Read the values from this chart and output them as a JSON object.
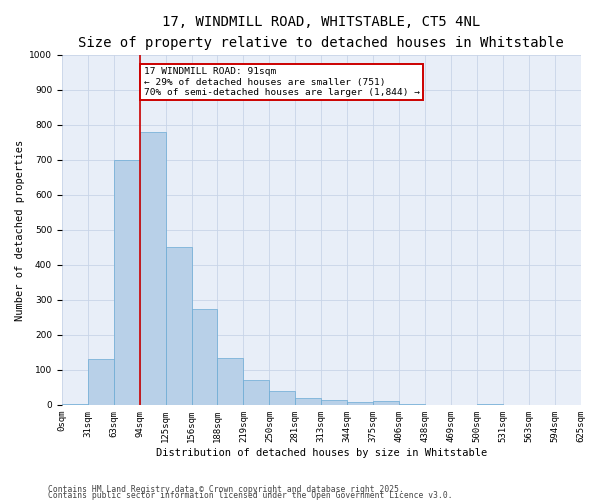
{
  "title1": "17, WINDMILL ROAD, WHITSTABLE, CT5 4NL",
  "title2": "Size of property relative to detached houses in Whitstable",
  "xlabel": "Distribution of detached houses by size in Whitstable",
  "ylabel": "Number of detached properties",
  "bin_labels": [
    "0sqm",
    "31sqm",
    "63sqm",
    "94sqm",
    "125sqm",
    "156sqm",
    "188sqm",
    "219sqm",
    "250sqm",
    "281sqm",
    "313sqm",
    "344sqm",
    "375sqm",
    "406sqm",
    "438sqm",
    "469sqm",
    "500sqm",
    "531sqm",
    "563sqm",
    "594sqm",
    "625sqm"
  ],
  "bar_values": [
    2,
    130,
    700,
    780,
    450,
    275,
    135,
    70,
    40,
    20,
    15,
    8,
    10,
    2,
    0,
    0,
    2,
    0,
    0,
    0
  ],
  "bar_color": "#b8d0e8",
  "bar_edge_color": "#6aaad4",
  "vline_color": "#cc0000",
  "vline_x": 3,
  "annotation_text": "17 WINDMILL ROAD: 91sqm\n← 29% of detached houses are smaller (751)\n70% of semi-detached houses are larger (1,844) →",
  "annotation_box_color": "#cc0000",
  "ylim": [
    0,
    1000
  ],
  "yticks": [
    0,
    100,
    200,
    300,
    400,
    500,
    600,
    700,
    800,
    900,
    1000
  ],
  "grid_color": "#c8d4e8",
  "bg_color": "#e8eef8",
  "footer1": "Contains HM Land Registry data © Crown copyright and database right 2025.",
  "footer2": "Contains public sector information licensed under the Open Government Licence v3.0.",
  "title_fontsize": 10,
  "subtitle_fontsize": 8.5,
  "label_fontsize": 7.5,
  "tick_fontsize": 6.5,
  "annot_fontsize": 6.8,
  "footer_fontsize": 5.8
}
